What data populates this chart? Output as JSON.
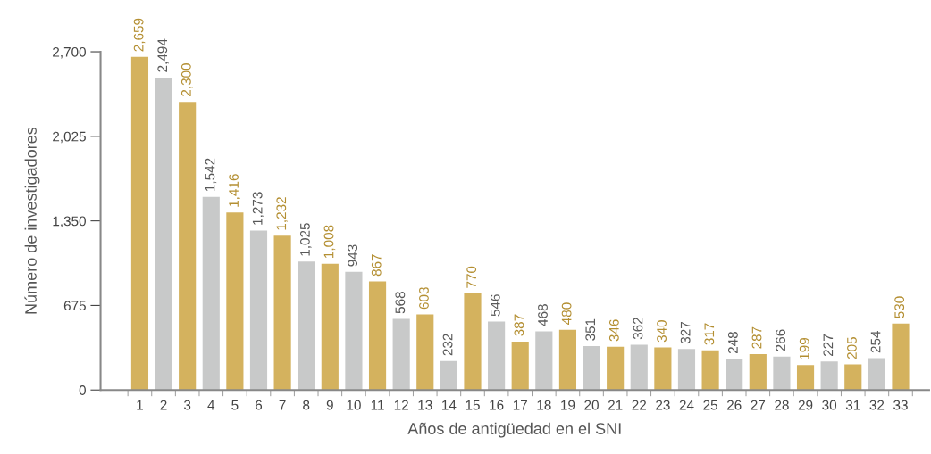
{
  "chart_data": {
    "type": "bar",
    "xlabel": "Años de antigüedad en el SNI",
    "ylabel": "Número de investigadores",
    "categories": [
      "1",
      "2",
      "3",
      "4",
      "5",
      "6",
      "7",
      "8",
      "9",
      "10",
      "11",
      "12",
      "13",
      "14",
      "15",
      "16",
      "17",
      "18",
      "19",
      "20",
      "21",
      "22",
      "23",
      "24",
      "25",
      "26",
      "27",
      "28",
      "29",
      "30",
      "31",
      "32",
      "33"
    ],
    "values": [
      2659,
      2494,
      2300,
      1542,
      1416,
      1273,
      1232,
      1025,
      1008,
      943,
      867,
      568,
      603,
      232,
      770,
      546,
      387,
      468,
      480,
      351,
      346,
      362,
      340,
      327,
      317,
      248,
      287,
      266,
      199,
      227,
      205,
      254,
      530
    ],
    "value_labels": [
      "2,659",
      "2,494",
      "2,300",
      "1,542",
      "1,416",
      "1,273",
      "1,232",
      "1,025",
      "1,008",
      "943",
      "867",
      "568",
      "603",
      "232",
      "770",
      "546",
      "387",
      "468",
      "480",
      "351",
      "346",
      "362",
      "340",
      "327",
      "317",
      "248",
      "287",
      "266",
      "199",
      "227",
      "205",
      "254",
      "530"
    ],
    "colors": [
      "#d4b25e",
      "#c8c9c9",
      "#d4b25e",
      "#c8c9c9",
      "#d4b25e",
      "#c8c9c9",
      "#d4b25e",
      "#c8c9c9",
      "#d4b25e",
      "#c8c9c9",
      "#d4b25e",
      "#c8c9c9",
      "#d4b25e",
      "#c8c9c9",
      "#d4b25e",
      "#c8c9c9",
      "#d4b25e",
      "#c8c9c9",
      "#d4b25e",
      "#c8c9c9",
      "#d4b25e",
      "#c8c9c9",
      "#d4b25e",
      "#c8c9c9",
      "#d4b25e",
      "#c8c9c9",
      "#d4b25e",
      "#c8c9c9",
      "#d4b25e",
      "#c8c9c9",
      "#d4b25e",
      "#c8c9c9",
      "#d4b25e"
    ],
    "ylim": [
      0,
      2700
    ],
    "yticks": [
      0,
      675,
      {
        "value": 1350,
        "label": "1,350"
      },
      {
        "value": 2025,
        "label": "2,025"
      },
      {
        "value": 2700,
        "label": "2,700"
      }
    ],
    "grid": false
  }
}
